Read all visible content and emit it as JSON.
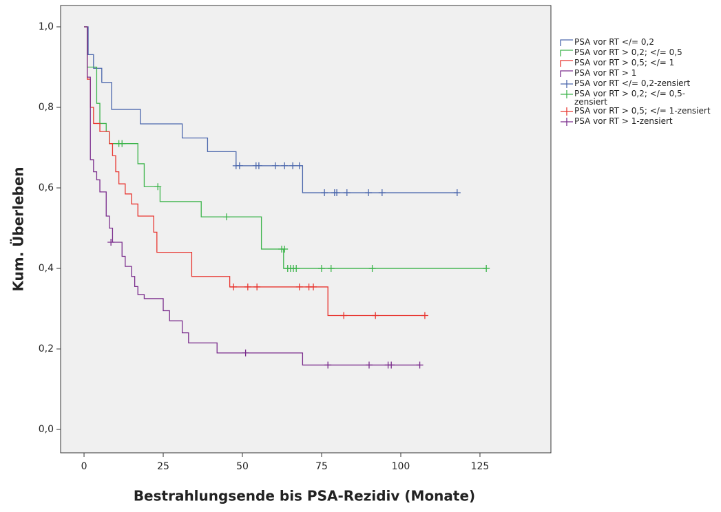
{
  "chart_data": {
    "type": "step",
    "xlabel": "Bestrahlungsende bis PSA-Rezidiv (Monate)",
    "ylabel": "Kum. Überleben",
    "xlim": [
      -7.4,
      147.4
    ],
    "ylim": [
      -0.058,
      1.053
    ],
    "xticks": [
      0,
      25,
      50,
      75,
      100,
      125
    ],
    "yticks": [
      {
        "value": 0,
        "label": "0,0"
      },
      {
        "value": 0.2,
        "label": "0,2"
      },
      {
        "value": 0.4,
        "label": "0,4"
      },
      {
        "value": 0.6,
        "label": "0,6"
      },
      {
        "value": 0.8,
        "label": "0,8"
      },
      {
        "value": 1,
        "label": "1,0"
      }
    ],
    "series": [
      {
        "name": "PSA vor RT </= 0,2",
        "color": "#4a66ac",
        "style": "line",
        "x": [
          0,
          1.3,
          3,
          5.6,
          8.7,
          17.8,
          31,
          39,
          48,
          69,
          118
        ],
        "values": [
          1.0,
          0.931,
          0.897,
          0.862,
          0.795,
          0.759,
          0.724,
          0.69,
          0.655,
          0.588,
          0.588
        ]
      },
      {
        "name": "PSA vor RT > 0,2; </= 0,5",
        "color": "#3cb44b",
        "style": "line",
        "x": [
          0,
          1,
          4,
          5,
          7,
          8,
          17,
          19,
          24,
          37,
          56,
          63,
          127
        ],
        "values": [
          1.0,
          0.9,
          0.81,
          0.76,
          0.74,
          0.71,
          0.66,
          0.603,
          0.566,
          0.528,
          0.448,
          0.4,
          0.4
        ]
      },
      {
        "name": "PSA vor RT > 0,5; </= 1",
        "color": "#e8352f",
        "style": "line",
        "x": [
          0,
          1,
          2,
          3,
          5,
          8,
          9,
          10,
          11,
          13,
          15,
          17,
          22,
          23,
          34,
          46,
          77,
          107.6
        ],
        "values": [
          1.0,
          0.87,
          0.8,
          0.76,
          0.74,
          0.71,
          0.68,
          0.64,
          0.61,
          0.585,
          0.56,
          0.53,
          0.49,
          0.44,
          0.38,
          0.354,
          0.283,
          0.283
        ]
      },
      {
        "name": "PSA vor RT > 1",
        "color": "#7a2c8c",
        "style": "line",
        "x": [
          0,
          1,
          2,
          3,
          4,
          5,
          7,
          8,
          9,
          12,
          13,
          15,
          16,
          17,
          19,
          25,
          27,
          31,
          33,
          42,
          69,
          106
        ],
        "values": [
          1.0,
          0.875,
          0.67,
          0.64,
          0.62,
          0.59,
          0.53,
          0.5,
          0.465,
          0.43,
          0.405,
          0.38,
          0.355,
          0.335,
          0.325,
          0.295,
          0.27,
          0.24,
          0.215,
          0.19,
          0.16,
          0.16
        ]
      },
      {
        "name": "PSA vor RT </= 0,2-zensiert",
        "color": "#4a66ac",
        "style": "censored",
        "x": [
          48,
          49.1,
          54.3,
          55.2,
          60.4,
          63.3,
          65.9,
          68,
          75.9,
          79.1,
          79.8,
          83,
          89.8,
          94.1,
          117.8
        ],
        "values": [
          0.655,
          0.655,
          0.655,
          0.655,
          0.655,
          0.655,
          0.655,
          0.655,
          0.588,
          0.588,
          0.588,
          0.588,
          0.588,
          0.588,
          0.588
        ]
      },
      {
        "name": "PSA vor RT > 0,2; </= 0,5-zensiert",
        "color": "#3cb44b",
        "style": "censored",
        "x": [
          11,
          12,
          23.3,
          45,
          62.4,
          63.3,
          64.3,
          65.2,
          66.1,
          67,
          75,
          78,
          91,
          127
        ],
        "values": [
          0.71,
          0.71,
          0.603,
          0.528,
          0.448,
          0.448,
          0.4,
          0.4,
          0.4,
          0.4,
          0.4,
          0.4,
          0.4,
          0.4
        ]
      },
      {
        "name": "PSA vor RT > 0,5; </= 1-zensiert",
        "color": "#e8352f",
        "style": "censored",
        "x": [
          47.2,
          51.7,
          54.6,
          68,
          71,
          72.4,
          82,
          92,
          107.6
        ],
        "values": [
          0.354,
          0.354,
          0.354,
          0.354,
          0.354,
          0.354,
          0.283,
          0.283,
          0.283
        ]
      },
      {
        "name": "PSA vor RT > 1-zensiert",
        "color": "#7a2c8c",
        "style": "censored",
        "x": [
          8.5,
          51,
          77,
          90,
          96,
          97,
          106
        ],
        "values": [
          0.465,
          0.19,
          0.16,
          0.16,
          0.16,
          0.16,
          0.16
        ]
      }
    ]
  }
}
